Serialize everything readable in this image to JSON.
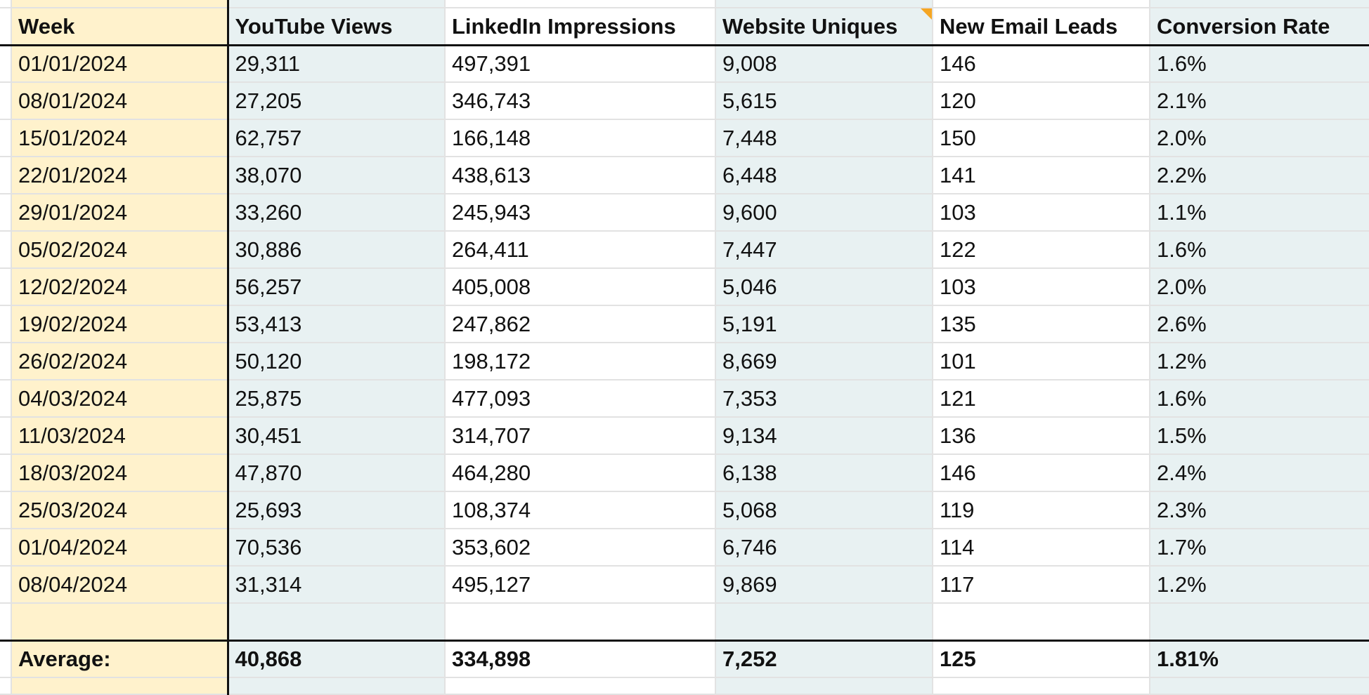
{
  "colors": {
    "week_column_fill": "#fff2cc",
    "tinted_column_fill": "#e8f1f2",
    "plain_column_fill": "#ffffff",
    "gridline": "#e2e2e2",
    "strong_border": "#111111",
    "note_indicator": "#f5a623"
  },
  "icons": {
    "comment_indicator": "note-indicator-icon"
  },
  "headers": {
    "week": "Week",
    "youtube_views": "YouTube Views",
    "linkedin_impressions": "LinkedIn Impressions",
    "website_uniques": "Website Uniques",
    "new_email_leads": "New Email Leads",
    "conversion_rate": "Conversion Rate"
  },
  "rows": [
    {
      "week": "01/01/2024",
      "youtube": "29,311",
      "linkedin": "497,391",
      "website": "9,008",
      "leads": "146",
      "conversion": "1.6%"
    },
    {
      "week": "08/01/2024",
      "youtube": "27,205",
      "linkedin": "346,743",
      "website": "5,615",
      "leads": "120",
      "conversion": "2.1%"
    },
    {
      "week": "15/01/2024",
      "youtube": "62,757",
      "linkedin": "166,148",
      "website": "7,448",
      "leads": "150",
      "conversion": "2.0%"
    },
    {
      "week": "22/01/2024",
      "youtube": "38,070",
      "linkedin": "438,613",
      "website": "6,448",
      "leads": "141",
      "conversion": "2.2%"
    },
    {
      "week": "29/01/2024",
      "youtube": "33,260",
      "linkedin": "245,943",
      "website": "9,600",
      "leads": "103",
      "conversion": "1.1%"
    },
    {
      "week": "05/02/2024",
      "youtube": "30,886",
      "linkedin": "264,411",
      "website": "7,447",
      "leads": "122",
      "conversion": "1.6%"
    },
    {
      "week": "12/02/2024",
      "youtube": "56,257",
      "linkedin": "405,008",
      "website": "5,046",
      "leads": "103",
      "conversion": "2.0%"
    },
    {
      "week": "19/02/2024",
      "youtube": "53,413",
      "linkedin": "247,862",
      "website": "5,191",
      "leads": "135",
      "conversion": "2.6%"
    },
    {
      "week": "26/02/2024",
      "youtube": "50,120",
      "linkedin": "198,172",
      "website": "8,669",
      "leads": "101",
      "conversion": "1.2%"
    },
    {
      "week": "04/03/2024",
      "youtube": "25,875",
      "linkedin": "477,093",
      "website": "7,353",
      "leads": "121",
      "conversion": "1.6%"
    },
    {
      "week": "11/03/2024",
      "youtube": "30,451",
      "linkedin": "314,707",
      "website": "9,134",
      "leads": "136",
      "conversion": "1.5%"
    },
    {
      "week": "18/03/2024",
      "youtube": "47,870",
      "linkedin": "464,280",
      "website": "6,138",
      "leads": "146",
      "conversion": "2.4%"
    },
    {
      "week": "25/03/2024",
      "youtube": "25,693",
      "linkedin": "108,374",
      "website": "5,068",
      "leads": "119",
      "conversion": "2.3%"
    },
    {
      "week": "01/04/2024",
      "youtube": "70,536",
      "linkedin": "353,602",
      "website": "6,746",
      "leads": "114",
      "conversion": "1.7%"
    },
    {
      "week": "08/04/2024",
      "youtube": "31,314",
      "linkedin": "495,127",
      "website": "9,869",
      "leads": "117",
      "conversion": "1.2%"
    }
  ],
  "average": {
    "label": "Average:",
    "youtube": "40,868",
    "linkedin": "334,898",
    "website": "7,252",
    "leads": "125",
    "conversion": "1.81%"
  }
}
